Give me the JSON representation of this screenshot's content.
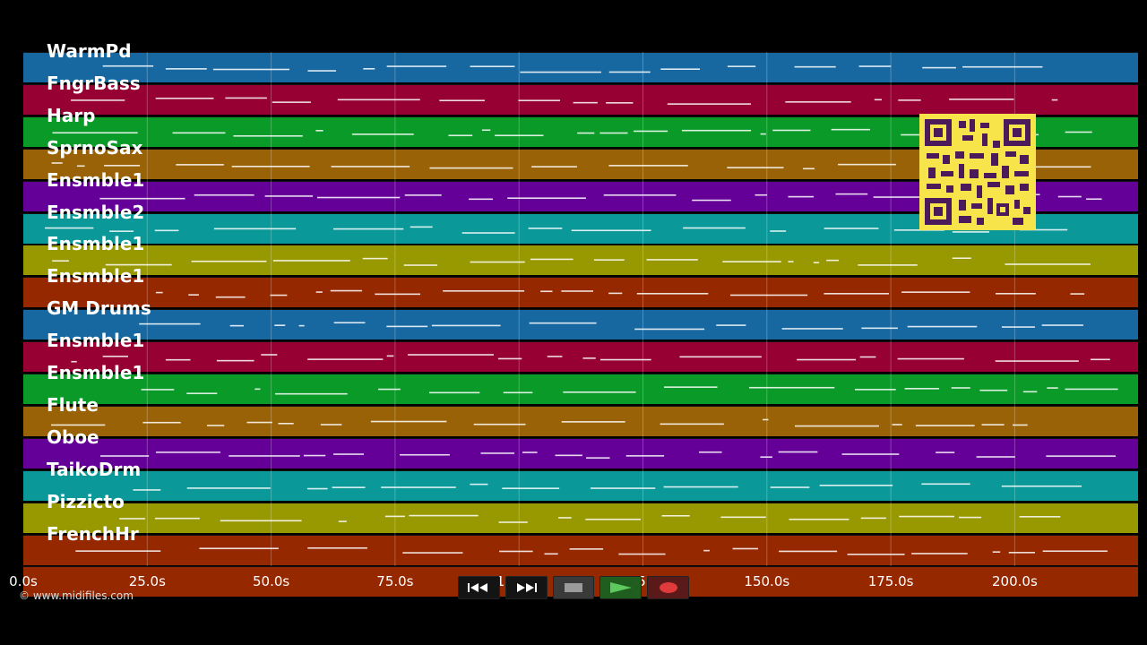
{
  "tracks": [
    {
      "name": "WarmPd",
      "color": "#1768a0"
    },
    {
      "name": "FngrBass",
      "color": "#960032"
    },
    {
      "name": "Harp",
      "color": "#0a9a28"
    },
    {
      "name": "SprnoSax",
      "color": "#9a6206"
    },
    {
      "name": "Ensmble1",
      "color": "#640097"
    },
    {
      "name": "Ensmble2",
      "color": "#0a9898"
    },
    {
      "name": "Ensmble1",
      "color": "#989800"
    },
    {
      "name": "Ensmble1",
      "color": "#962800"
    },
    {
      "name": "GM Drums",
      "color": "#1768a0"
    },
    {
      "name": "Ensmble1",
      "color": "#960032"
    },
    {
      "name": "Ensmble1",
      "color": "#0a9a28"
    },
    {
      "name": "Flute",
      "color": "#9a6206"
    },
    {
      "name": "Oboe",
      "color": "#640097"
    },
    {
      "name": "TaikoDrm",
      "color": "#0a9898"
    },
    {
      "name": "Pizzicto",
      "color": "#989800"
    },
    {
      "name": "FrenchHr",
      "color": "#962800"
    },
    {
      "name": "",
      "color": "#962800"
    }
  ],
  "time_axis": {
    "ticks": [
      "0.0s",
      "25.0s",
      "50.0s",
      "75.0s",
      "100.0s",
      "125.0s",
      "150.0s",
      "175.0s",
      "200.0s"
    ]
  },
  "copyright": "© www.midifiles.com",
  "controls": [
    {
      "name": "rewind",
      "icon": "rewind-icon"
    },
    {
      "name": "fast-forward",
      "icon": "fast-forward-icon"
    },
    {
      "name": "stop",
      "icon": "stop-icon"
    },
    {
      "name": "play",
      "icon": "play-icon"
    },
    {
      "name": "record",
      "icon": "record-icon"
    }
  ],
  "qr_code": {
    "icon": "qr-code-icon",
    "color": "#f7e34a"
  }
}
